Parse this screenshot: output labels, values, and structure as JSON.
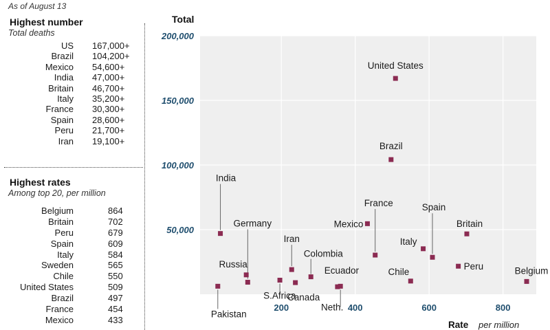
{
  "header": {
    "as_of": "As of August 13"
  },
  "deaths_section": {
    "title": "Highest number",
    "subtitle": "Total deaths",
    "rows": [
      {
        "country": "US",
        "value": "167,000+"
      },
      {
        "country": "Brazil",
        "value": "104,200+"
      },
      {
        "country": "Mexico",
        "value": "54,600+"
      },
      {
        "country": "India",
        "value": "47,000+"
      },
      {
        "country": "Britain",
        "value": "46,700+"
      },
      {
        "country": "Italy",
        "value": "35,200+"
      },
      {
        "country": "France",
        "value": "30,300+"
      },
      {
        "country": "Spain",
        "value": "28,600+"
      },
      {
        "country": "Peru",
        "value": "21,700+"
      },
      {
        "country": "Iran",
        "value": "19,100+"
      }
    ]
  },
  "rates_section": {
    "title": "Highest rates",
    "subtitle": "Among top 20, per million",
    "rows": [
      {
        "country": "Belgium",
        "value": "864"
      },
      {
        "country": "Britain",
        "value": "702"
      },
      {
        "country": "Peru",
        "value": "679"
      },
      {
        "country": "Spain",
        "value": "609"
      },
      {
        "country": "Italy",
        "value": "584"
      },
      {
        "country": "Sweden",
        "value": "565"
      },
      {
        "country": "Chile",
        "value": "550"
      },
      {
        "country": "United States",
        "value": "509"
      },
      {
        "country": "Brazil",
        "value": "497"
      },
      {
        "country": "France",
        "value": "454"
      },
      {
        "country": "Mexico",
        "value": "433"
      }
    ]
  },
  "chart_data": {
    "type": "scatter",
    "ylabel": "Total",
    "xlabel": "Rate",
    "xlabel_unit": "per million",
    "xlim": [
      -20,
      890
    ],
    "ylim": [
      0,
      200000
    ],
    "x_ticks": [
      200,
      400,
      600,
      800
    ],
    "x_tick_labels": [
      "200",
      "400",
      "600",
      "800"
    ],
    "y_ticks": [
      50000,
      100000,
      150000,
      200000
    ],
    "y_tick_labels": [
      "50,000",
      "100,000",
      "150,000",
      "200,000"
    ],
    "grid": true,
    "colors": {
      "marker": "#8b2b52",
      "plot_bg": "#efefef",
      "grid": "#ffffff",
      "y_tick": "#1f4e6e",
      "leader": "#666666"
    },
    "points": [
      {
        "label": "United States",
        "x": 509,
        "y": 167000
      },
      {
        "label": "Brazil",
        "x": 497,
        "y": 104200
      },
      {
        "label": "India",
        "x": 35,
        "y": 47000
      },
      {
        "label": "Britain",
        "x": 702,
        "y": 46700
      },
      {
        "label": "Mexico",
        "x": 433,
        "y": 54600
      },
      {
        "label": "France",
        "x": 454,
        "y": 30300
      },
      {
        "label": "Spain",
        "x": 609,
        "y": 28600
      },
      {
        "label": "Italy",
        "x": 584,
        "y": 35200
      },
      {
        "label": "Peru",
        "x": 679,
        "y": 21700
      },
      {
        "label": "Belgium",
        "x": 864,
        "y": 9900
      },
      {
        "label": "Chile",
        "x": 550,
        "y": 10200
      },
      {
        "label": "Ecuador",
        "x": 352,
        "y": 5800
      },
      {
        "label": "Neth.",
        "x": 360,
        "y": 6200
      },
      {
        "label": "Colombia",
        "x": 280,
        "y": 13500
      },
      {
        "label": "Iran",
        "x": 228,
        "y": 19100
      },
      {
        "label": "Canada",
        "x": 238,
        "y": 9000
      },
      {
        "label": "S.Africa",
        "x": 196,
        "y": 10900
      },
      {
        "label": "Germany",
        "x": 109,
        "y": 9300
      },
      {
        "label": "Russia",
        "x": 105,
        "y": 15000
      },
      {
        "label": "Pakistan",
        "x": 28,
        "y": 6200
      }
    ]
  }
}
